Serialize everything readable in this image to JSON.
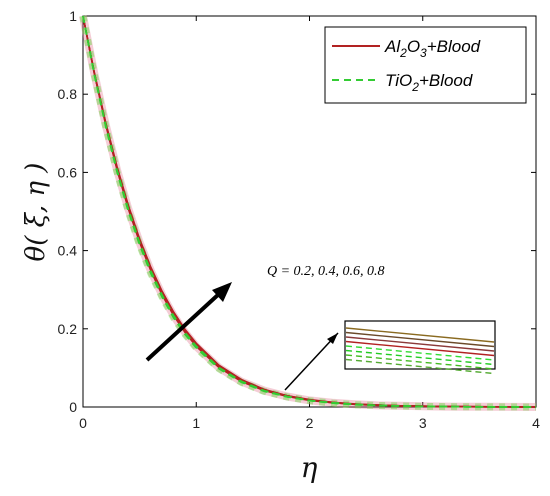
{
  "chart_data": {
    "type": "line",
    "xlabel": "η",
    "ylabel": "θ( ξ, η )",
    "xlim": [
      0,
      4
    ],
    "ylim": [
      0,
      1
    ],
    "xticks": [
      "0",
      "1",
      "2",
      "3",
      "4"
    ],
    "yticks": [
      "0",
      "0.2",
      "0.4",
      "0.6",
      "0.8",
      "1"
    ],
    "grid": false,
    "legend": {
      "placement": "top-right",
      "entries": [
        {
          "base": "Al",
          "sub1": "2",
          "mid": "O",
          "sub2": "3",
          "rest": "+Blood",
          "color": "#b22222",
          "style": "solid"
        },
        {
          "base": "TiO",
          "sub1": "2",
          "mid": "",
          "sub2": "",
          "rest": "+Blood",
          "color": "#33cc33",
          "style": "dashed"
        }
      ]
    },
    "annotation": "Q = 0.2, 0.4, 0.6, 0.8",
    "x": [
      0,
      0.1,
      0.2,
      0.3,
      0.4,
      0.5,
      0.6,
      0.7,
      0.8,
      0.9,
      1.0,
      1.2,
      1.4,
      1.6,
      1.8,
      2.0,
      2.2,
      2.4,
      2.6,
      2.8,
      3.0,
      3.2,
      3.4,
      3.6,
      3.8,
      4.0
    ],
    "series": [
      {
        "group": "Al2O3+Blood",
        "Q": 0.2,
        "values": [
          1,
          0.853,
          0.722,
          0.607,
          0.507,
          0.421,
          0.348,
          0.286,
          0.234,
          0.191,
          0.155,
          0.101,
          0.065,
          0.042,
          0.027,
          0.017,
          0.011,
          0.007,
          0.004,
          0.003,
          0.002,
          0.001,
          0.0007,
          0.0004,
          0.0002,
          0
        ]
      },
      {
        "group": "Al2O3+Blood",
        "Q": 0.4,
        "values": [
          1,
          0.854,
          0.724,
          0.61,
          0.51,
          0.424,
          0.351,
          0.289,
          0.237,
          0.194,
          0.158,
          0.103,
          0.067,
          0.043,
          0.028,
          0.018,
          0.011,
          0.007,
          0.005,
          0.003,
          0.002,
          0.001,
          0.0007,
          0.0004,
          0.0002,
          0
        ]
      },
      {
        "group": "Al2O3+Blood",
        "Q": 0.6,
        "values": [
          1,
          0.855,
          0.726,
          0.612,
          0.513,
          0.427,
          0.354,
          0.292,
          0.24,
          0.196,
          0.16,
          0.105,
          0.068,
          0.044,
          0.029,
          0.018,
          0.012,
          0.007,
          0.005,
          0.003,
          0.002,
          0.001,
          0.0007,
          0.0004,
          0.0002,
          0
        ]
      },
      {
        "group": "Al2O3+Blood",
        "Q": 0.8,
        "values": [
          1,
          0.856,
          0.728,
          0.615,
          0.516,
          0.43,
          0.357,
          0.295,
          0.243,
          0.199,
          0.163,
          0.107,
          0.07,
          0.045,
          0.029,
          0.019,
          0.012,
          0.008,
          0.005,
          0.003,
          0.002,
          0.001,
          0.0007,
          0.0004,
          0.0002,
          0
        ]
      },
      {
        "group": "TiO2+Blood",
        "Q": 0.2,
        "values": [
          1,
          0.85,
          0.717,
          0.601,
          0.5,
          0.414,
          0.341,
          0.28,
          0.228,
          0.186,
          0.151,
          0.098,
          0.063,
          0.04,
          0.026,
          0.016,
          0.01,
          0.006,
          0.004,
          0.0025,
          0.0015,
          0.001,
          0.0006,
          0.0003,
          0.0002,
          0
        ]
      },
      {
        "group": "TiO2+Blood",
        "Q": 0.4,
        "values": [
          1,
          0.851,
          0.719,
          0.603,
          0.503,
          0.417,
          0.344,
          0.282,
          0.231,
          0.188,
          0.153,
          0.099,
          0.064,
          0.041,
          0.026,
          0.017,
          0.01,
          0.006,
          0.004,
          0.0025,
          0.0015,
          0.001,
          0.0006,
          0.0003,
          0.0002,
          0
        ]
      },
      {
        "group": "TiO2+Blood",
        "Q": 0.6,
        "values": [
          1,
          0.852,
          0.721,
          0.605,
          0.505,
          0.419,
          0.346,
          0.284,
          0.233,
          0.19,
          0.154,
          0.1,
          0.065,
          0.042,
          0.027,
          0.017,
          0.011,
          0.007,
          0.004,
          0.0028,
          0.0017,
          0.001,
          0.0006,
          0.0003,
          0.0002,
          0
        ]
      },
      {
        "group": "TiO2+Blood",
        "Q": 0.8,
        "values": [
          1,
          0.853,
          0.723,
          0.607,
          0.507,
          0.421,
          0.348,
          0.286,
          0.234,
          0.191,
          0.156,
          0.101,
          0.066,
          0.042,
          0.027,
          0.017,
          0.011,
          0.007,
          0.004,
          0.0028,
          0.0017,
          0.001,
          0.0006,
          0.0003,
          0.0002,
          0
        ]
      }
    ]
  }
}
